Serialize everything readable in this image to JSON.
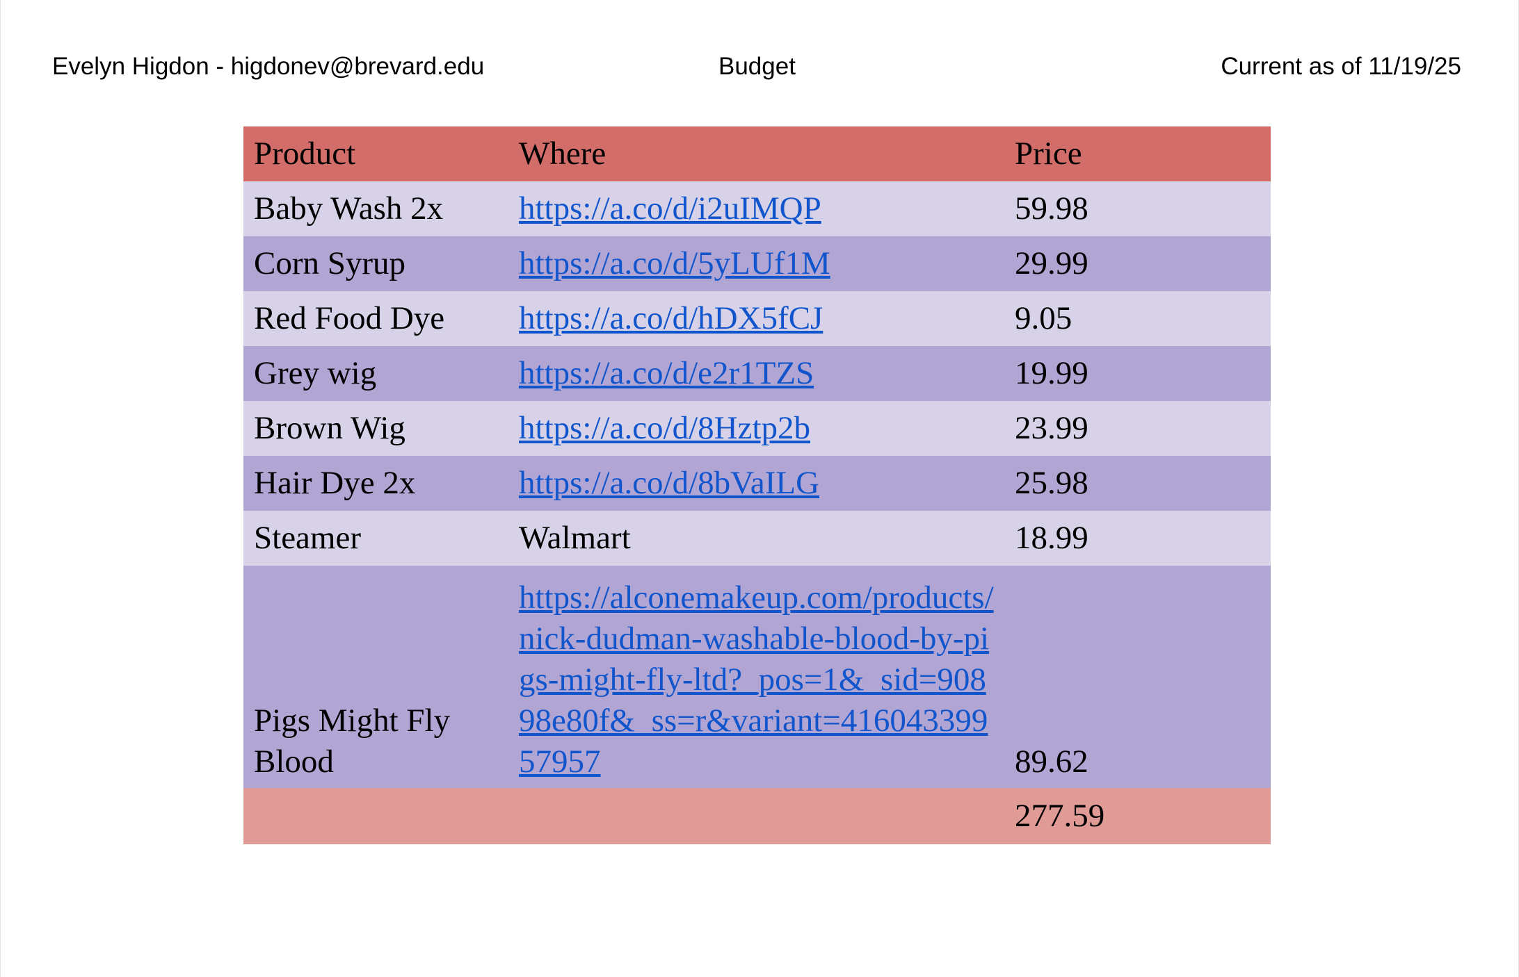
{
  "header": {
    "author": "Evelyn Higdon - higdonev@brevard.edu",
    "title": "Budget",
    "current_as_of": "Current as of 11/19/25"
  },
  "table": {
    "columns": [
      "Product",
      "Where",
      "Price"
    ],
    "rows": [
      {
        "product": "Baby Wash 2x",
        "where": "https://a.co/d/i2uIMQP",
        "where_is_link": true,
        "price": "59.98"
      },
      {
        "product": "Corn Syrup",
        "where": "https://a.co/d/5yLUf1M",
        "where_is_link": true,
        "price": "29.99"
      },
      {
        "product": "Red Food Dye",
        "where": "https://a.co/d/hDX5fCJ",
        "where_is_link": true,
        "price": "9.05"
      },
      {
        "product": "Grey wig",
        "where": "https://a.co/d/e2r1TZS",
        "where_is_link": true,
        "price": "19.99"
      },
      {
        "product": "Brown Wig",
        "where": "https://a.co/d/8Hztp2b",
        "where_is_link": true,
        "price": "23.99"
      },
      {
        "product": "Hair Dye 2x",
        "where": "https://a.co/d/8bVaILG",
        "where_is_link": true,
        "price": "25.98"
      },
      {
        "product": "Steamer",
        "where": "Walmart",
        "where_is_link": false,
        "price": "18.99"
      },
      {
        "product": "Pigs Might Fly Blood",
        "where": "https://alconemakeup.com/products/nick-dudman-washable-blood-by-pigs-might-fly-ltd?_pos=1&_sid=90898e80f&_ss=r&variant=41604339957957",
        "where_is_link": true,
        "price": "89.62"
      }
    ],
    "total": "277.59"
  },
  "colors": {
    "header_row": "#d26d69",
    "row_light": "#d8d2e8",
    "row_dark": "#b1a5d4",
    "total_row": "#e09b97",
    "link": "#1155cc"
  }
}
